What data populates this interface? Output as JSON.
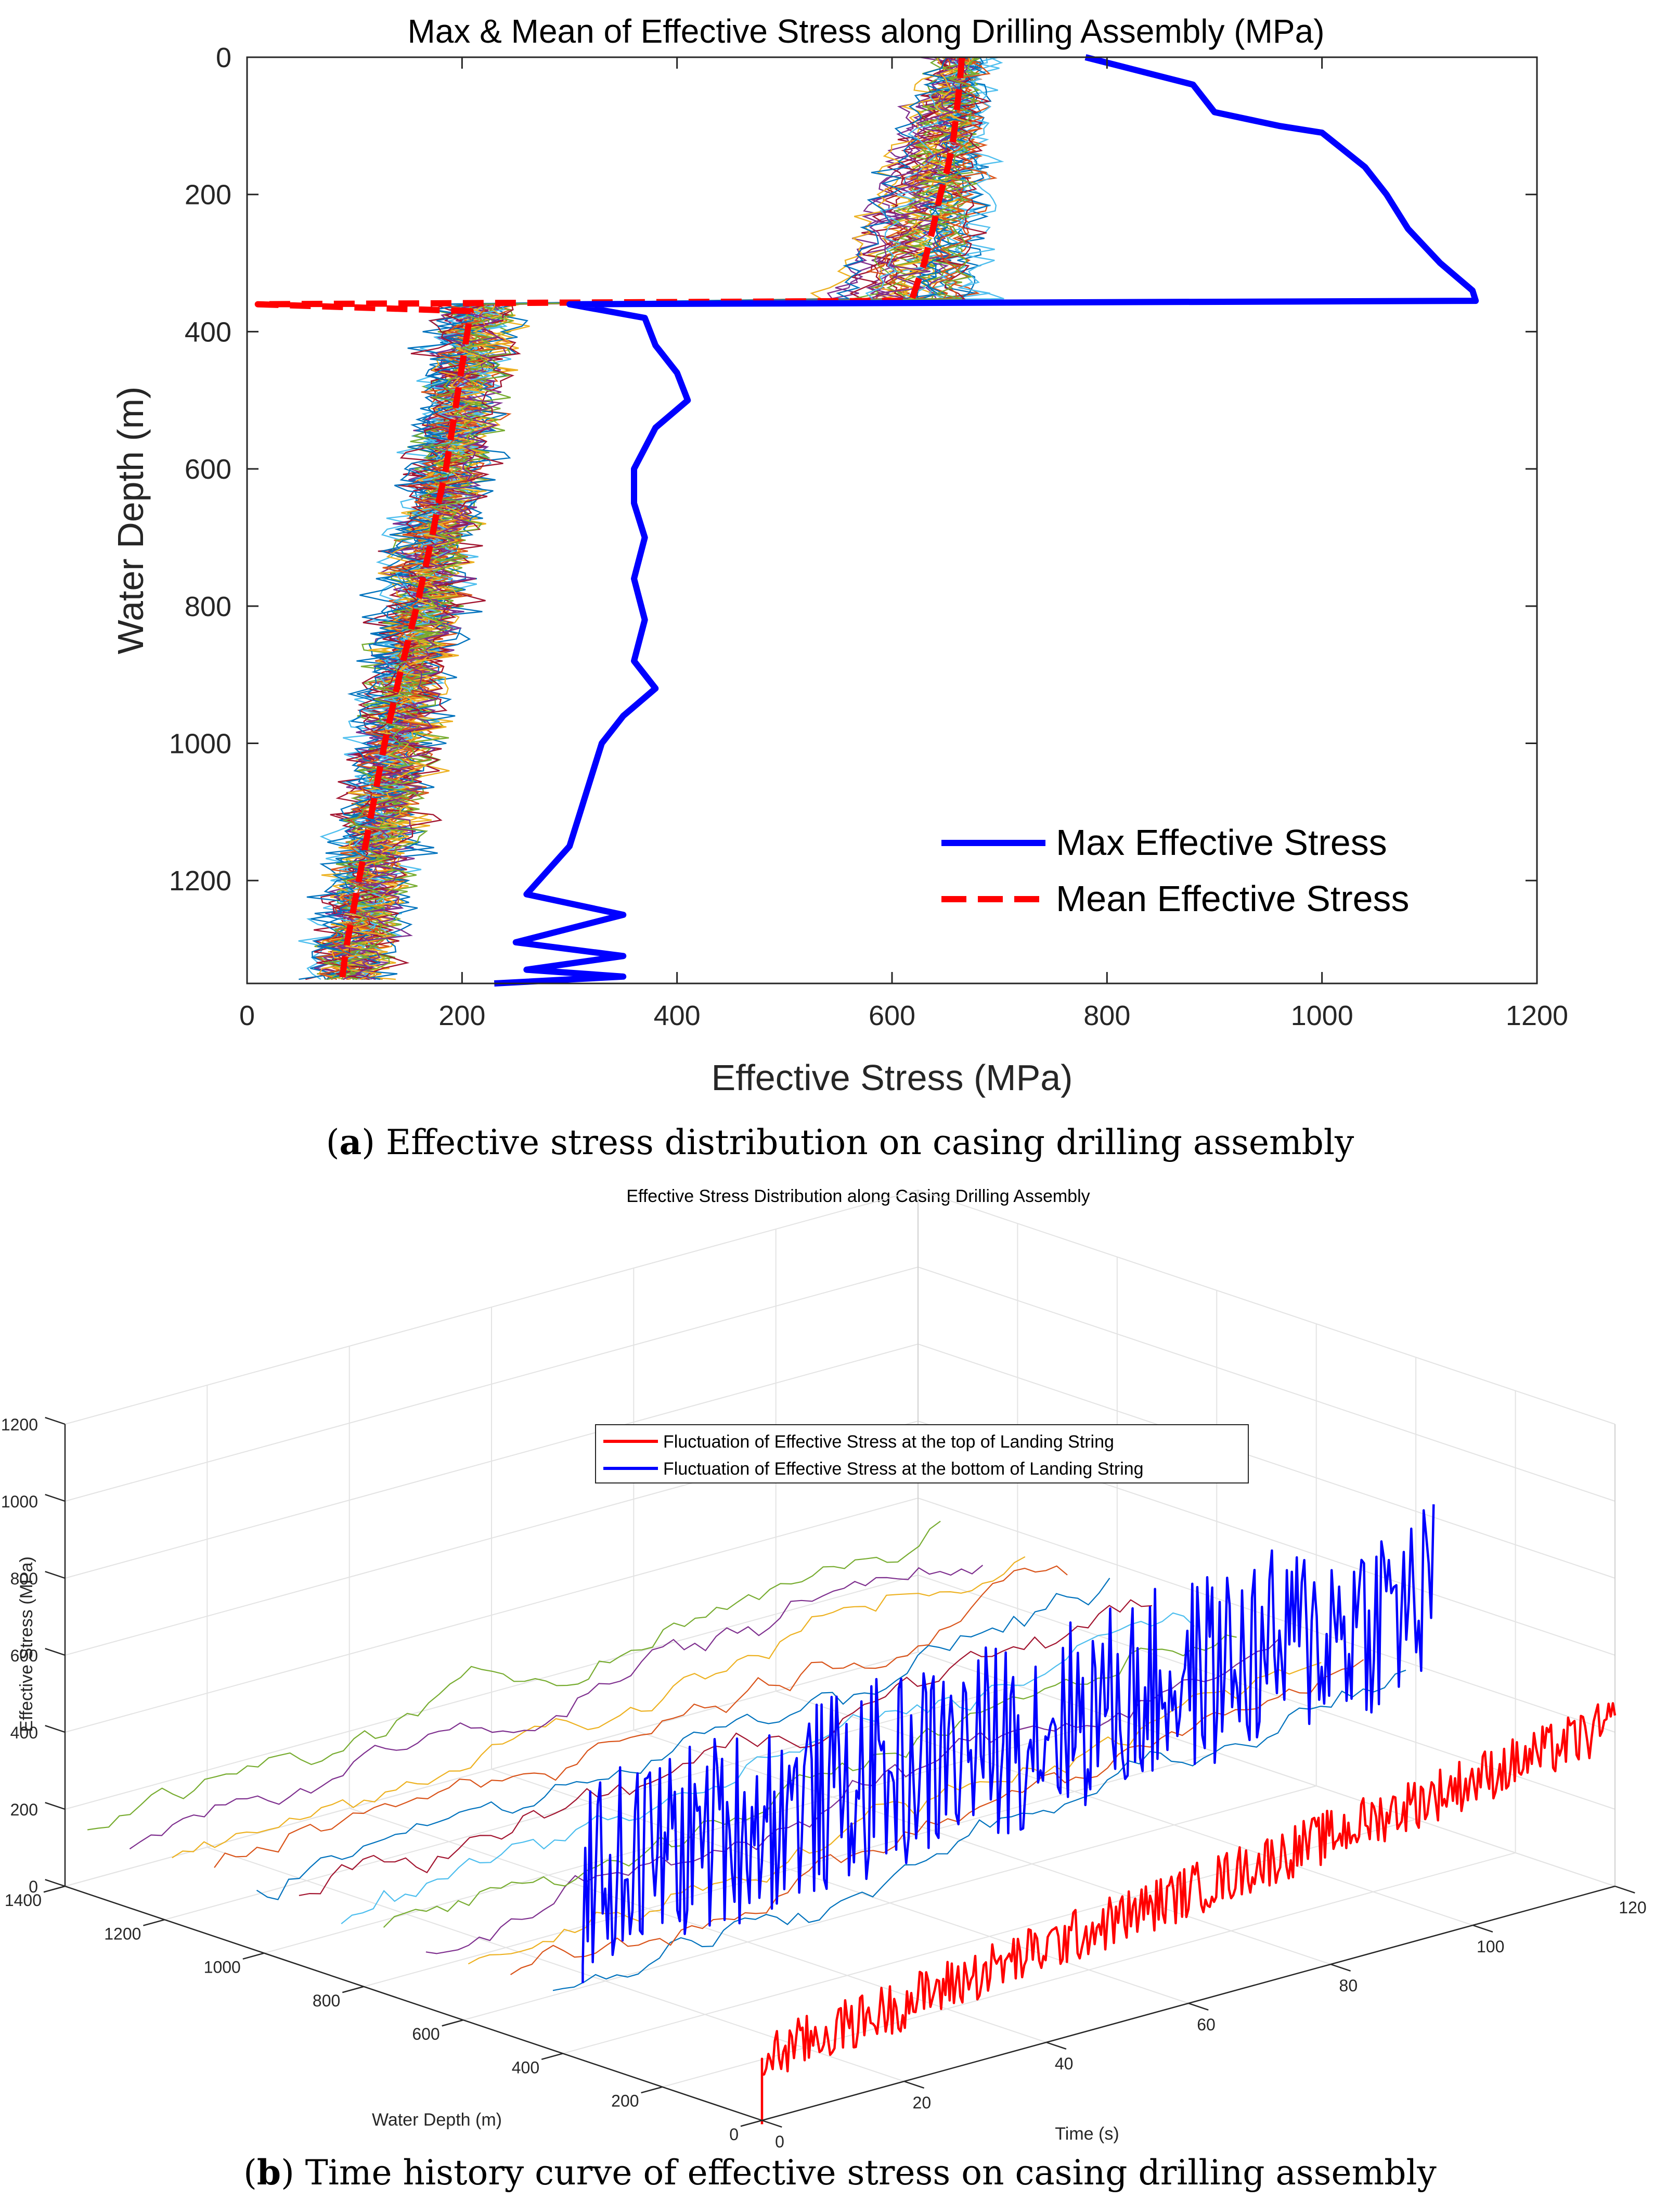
{
  "panel_a": {
    "caption_letter": "a",
    "caption_text": "Effective stress distribution on casing drilling assembly"
  },
  "panel_b": {
    "caption_letter": "b",
    "caption_text": "Time history curve of effective stress on casing drilling assembly"
  },
  "colors": {
    "max": "#0000ff",
    "mean": "#ff0000",
    "palette": [
      "#0072bd",
      "#d95319",
      "#edb120",
      "#7e2f8e",
      "#77ac30",
      "#4dbeee",
      "#a2142f"
    ]
  },
  "chart_data": [
    {
      "id": "a",
      "type": "line",
      "title": "Max & Mean of Effective Stress along Drilling Assembly (MPa)",
      "xlabel": "Effective Stress (MPa)",
      "ylabel": "Water Depth (m)",
      "xlim": [
        0,
        1200
      ],
      "ylim": [
        0,
        1350
      ],
      "y_reversed": true,
      "xticks": [
        "0",
        "200",
        "400",
        "600",
        "800",
        "1000",
        "1200"
      ],
      "yticks": [
        "0",
        "200",
        "400",
        "600",
        "800",
        "1000",
        "1200"
      ],
      "legend_position": "bottom-right",
      "series": [
        {
          "name": "Max Effective Stress",
          "style": "solid",
          "points": [
            [
              780,
              0
            ],
            [
              880,
              40
            ],
            [
              900,
              80
            ],
            [
              960,
              100
            ],
            [
              1000,
              110
            ],
            [
              1040,
              160
            ],
            [
              1060,
              200
            ],
            [
              1080,
              250
            ],
            [
              1110,
              300
            ],
            [
              1140,
              340
            ],
            [
              1143,
              355
            ],
            [
              300,
              360
            ],
            [
              370,
              380
            ],
            [
              380,
              420
            ],
            [
              400,
              460
            ],
            [
              410,
              500
            ],
            [
              380,
              540
            ],
            [
              360,
              600
            ],
            [
              360,
              650
            ],
            [
              370,
              700
            ],
            [
              360,
              760
            ],
            [
              370,
              820
            ],
            [
              360,
              880
            ],
            [
              380,
              920
            ],
            [
              350,
              960
            ],
            [
              330,
              1000
            ],
            [
              320,
              1050
            ],
            [
              310,
              1100
            ],
            [
              300,
              1150
            ],
            [
              260,
              1220
            ],
            [
              350,
              1250
            ],
            [
              250,
              1290
            ],
            [
              350,
              1310
            ],
            [
              260,
              1330
            ],
            [
              350,
              1340
            ],
            [
              230,
              1350
            ]
          ]
        },
        {
          "name": "Mean Effective Stress",
          "style": "dashed",
          "points": [
            [
              665,
              0
            ],
            [
              663,
              40
            ],
            [
              660,
              80
            ],
            [
              657,
              120
            ],
            [
              652,
              160
            ],
            [
              645,
              200
            ],
            [
              638,
              250
            ],
            [
              630,
              300
            ],
            [
              618,
              355
            ],
            [
              10,
              360
            ],
            [
              208,
              370
            ],
            [
              205,
              400
            ],
            [
              200,
              450
            ],
            [
              195,
              500
            ],
            [
              190,
              550
            ],
            [
              185,
              600
            ],
            [
              178,
              650
            ],
            [
              172,
              700
            ],
            [
              165,
              750
            ],
            [
              158,
              800
            ],
            [
              150,
              850
            ],
            [
              142,
              900
            ],
            [
              135,
              950
            ],
            [
              128,
              1000
            ],
            [
              122,
              1050
            ],
            [
              116,
              1100
            ],
            [
              110,
              1150
            ],
            [
              104,
              1200
            ],
            [
              98,
              1250
            ],
            [
              92,
              1300
            ],
            [
              88,
              1350
            ]
          ]
        }
      ],
      "samples": {
        "count": 40,
        "upper": {
          "depth_range": [
            0,
            355
          ],
          "mean_start": 665,
          "mean_end": 620,
          "spread": 85
        },
        "lower": {
          "depth_range": [
            360,
            1350
          ],
          "mean_start": 208,
          "mean_end": 88,
          "spread": 80
        }
      }
    },
    {
      "id": "b",
      "type": "line",
      "title": "Effective Stress Distribution along Casing Drilling Assembly",
      "xlabel": "Time (s)",
      "ylabel": "Water Depth (m)",
      "zlabel": "Effective Stress (MPa)",
      "xlim": [
        0,
        120
      ],
      "ylim": [
        0,
        1400
      ],
      "zlim": [
        0,
        1200
      ],
      "xticks": [
        "0",
        "20",
        "40",
        "60",
        "80",
        "100",
        "120"
      ],
      "yticks": [
        "0",
        "200",
        "400",
        "600",
        "800",
        "1000",
        "1200",
        "1400"
      ],
      "zticks": [
        "0",
        "200",
        "400",
        "600",
        "800",
        "1000",
        "1200"
      ],
      "legend_position": "top-center",
      "series": [
        {
          "name": "Fluctuation of Effective Stress at the top of Landing String",
          "water_depth": 0,
          "mean_start": 160,
          "mean_end": 420,
          "amplitude": 70
        },
        {
          "name": "Fluctuation of Effective Stress at the bottom of Landing String",
          "water_depth": 360,
          "mean_start": 480,
          "mean_end": 600,
          "amplitude": 260
        }
      ],
      "samples": {
        "count": 12,
        "mean": 150,
        "amplitude": 110
      }
    }
  ]
}
